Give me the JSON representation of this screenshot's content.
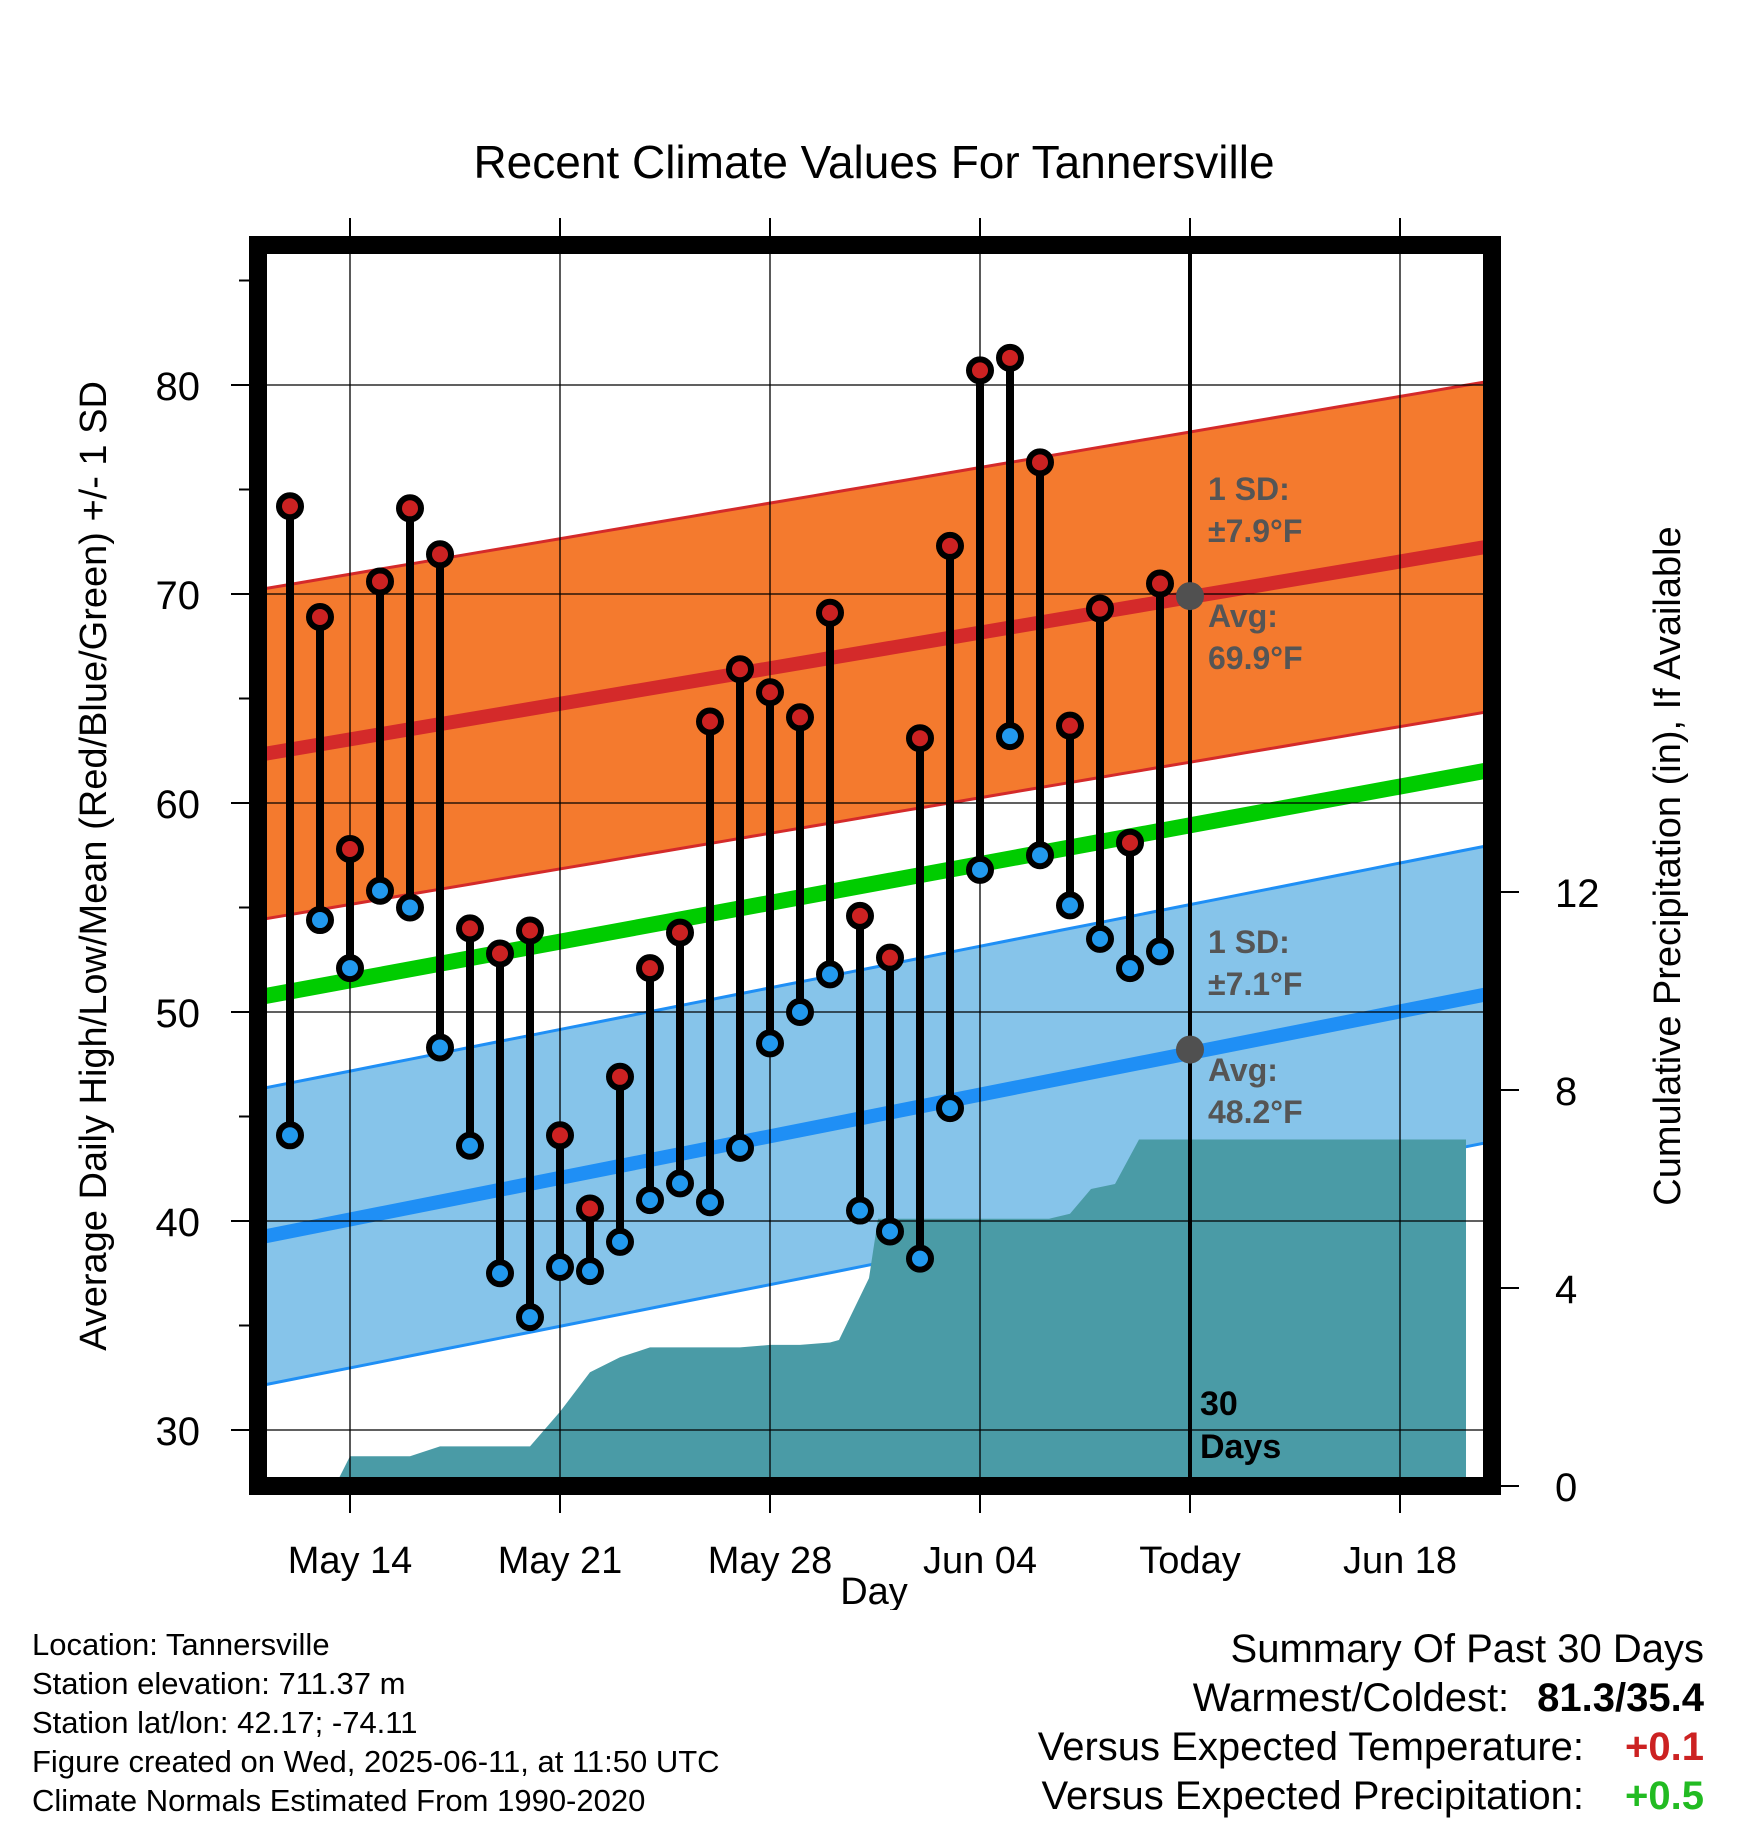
{
  "chart_data": {
    "type": "line",
    "title": "Recent Climate Values For Tannersville",
    "xlabel": "Day",
    "ylabel": "Average Daily High/Low/Mean (Red/Blue/Green) +/- 1 SD",
    "y2label": "Cumulative Precipitation (in), If Available",
    "ylim": [
      27.5,
      86
    ],
    "y2lim": [
      0,
      22
    ],
    "yticks": [
      30,
      40,
      50,
      60,
      70,
      80
    ],
    "y2ticks": [
      0,
      4,
      8,
      12
    ],
    "xlim": [
      -3.3,
      37.2
    ],
    "xticks": [
      {
        "day": 0,
        "label": "May 14"
      },
      {
        "day": 7,
        "label": "May 21"
      },
      {
        "day": 14,
        "label": "May 28"
      },
      {
        "day": 21,
        "label": "Jun 04"
      },
      {
        "day": 28,
        "label": "Today"
      },
      {
        "day": 35,
        "label": "Jun 18"
      }
    ],
    "grid": true,
    "days": [
      "May 12",
      "May 13",
      "May 14",
      "May 15",
      "May 16",
      "May 17",
      "May 18",
      "May 19",
      "May 20",
      "May 21",
      "May 22",
      "May 23",
      "May 24",
      "May 25",
      "May 26",
      "May 27",
      "May 28",
      "May 29",
      "May 30",
      "May 31",
      "Jun 01",
      "Jun 02",
      "Jun 03",
      "Jun 04",
      "Jun 05",
      "Jun 06",
      "Jun 07",
      "Jun 08",
      "Jun 09",
      "Jun 10"
    ],
    "series": [
      {
        "name": "High",
        "color": "#cc2222",
        "values": [
          74.2,
          68.9,
          57.8,
          70.6,
          74.1,
          71.9,
          54.0,
          52.8,
          53.9,
          44.1,
          40.6,
          46.9,
          52.1,
          53.8,
          63.9,
          66.4,
          65.3,
          64.1,
          69.1,
          54.6,
          52.6,
          63.1,
          72.3,
          80.7,
          81.3,
          76.3,
          63.7,
          69.3,
          58.1,
          70.5
        ]
      },
      {
        "name": "Low",
        "color": "#2299ee",
        "values": [
          44.1,
          54.4,
          52.1,
          55.8,
          55.0,
          48.3,
          43.6,
          37.5,
          35.4,
          37.8,
          37.6,
          39.0,
          41.0,
          41.8,
          40.9,
          43.5,
          48.5,
          50.0,
          51.8,
          40.5,
          39.5,
          38.2,
          45.4,
          56.8,
          63.2,
          57.5,
          55.1,
          53.5,
          52.1,
          52.9
        ]
      }
    ],
    "normals": {
      "high_mean": [
        62.3,
        72.3
      ],
      "high_sd": 7.9,
      "low_mean": [
        39.2,
        50.9
      ],
      "low_sd": 7.1,
      "mean_line": [
        50.7,
        61.6
      ],
      "color_high_band": "#f47a2e",
      "color_high_line": "#d42a2a",
      "color_low_band": "#86c4ea",
      "color_low_line": "#1f8ff5",
      "color_mean_line": "#00cc00"
    },
    "precipitation": {
      "color": "#4a9ba6",
      "points": [
        [
          -0.5,
          0
        ],
        [
          0,
          0.6
        ],
        [
          2,
          0.6
        ],
        [
          3,
          0.8
        ],
        [
          5,
          0.8
        ],
        [
          6,
          0.8
        ],
        [
          7,
          1.5
        ],
        [
          8,
          2.3
        ],
        [
          9,
          2.6
        ],
        [
          10,
          2.8
        ],
        [
          11,
          2.8
        ],
        [
          12,
          2.8
        ],
        [
          13,
          2.8
        ],
        [
          14,
          2.85
        ],
        [
          15,
          2.85
        ],
        [
          16,
          2.9
        ],
        [
          16.3,
          2.95
        ],
        [
          17.3,
          4.2
        ],
        [
          17.6,
          5.4
        ],
        [
          18,
          5.4
        ],
        [
          19,
          5.4
        ],
        [
          20,
          5.4
        ],
        [
          21,
          5.4
        ],
        [
          22,
          5.4
        ],
        [
          23,
          5.4
        ],
        [
          23.3,
          5.4
        ],
        [
          24,
          5.5
        ],
        [
          24.7,
          6.0
        ],
        [
          25.5,
          6.1
        ],
        [
          26.3,
          7.0
        ],
        [
          27,
          7.0
        ],
        [
          28,
          7.0
        ],
        [
          33,
          7.0
        ],
        [
          37.2,
          7.0
        ]
      ]
    },
    "annotations": {
      "high_sd_label": "1 SD:",
      "high_sd_value": "±7.9°F",
      "high_avg_label": "Avg:",
      "high_avg_value": "69.9°F",
      "high_avg": 69.9,
      "low_sd_label": "1 SD:",
      "low_sd_value": "±7.1°F",
      "low_avg_label": "Avg:",
      "low_avg_value": "48.2°F",
      "low_avg": 48.2,
      "days_label_1": "30",
      "days_label_2": "Days"
    }
  },
  "footer": {
    "location": "Location: Tannersville",
    "elevation": "Station elevation: 711.37 m",
    "latlon": "Station lat/lon: 42.17; -74.11",
    "created": "Figure created on Wed, 2025-06-11, at 11:50 UTC",
    "normals": "Climate Normals Estimated From 1990-2020"
  },
  "summary": {
    "title": "Summary Of Past 30 Days",
    "warm_cold_label": "Warmest/Coldest:",
    "warm_cold_value": "81.3/35.4",
    "temp_label": "Versus Expected Temperature:",
    "temp_value": "+0.1",
    "temp_color": "#cc2222",
    "precip_label": "Versus Expected Precipitation:",
    "precip_value": "+0.5",
    "precip_color": "#22bb22"
  }
}
